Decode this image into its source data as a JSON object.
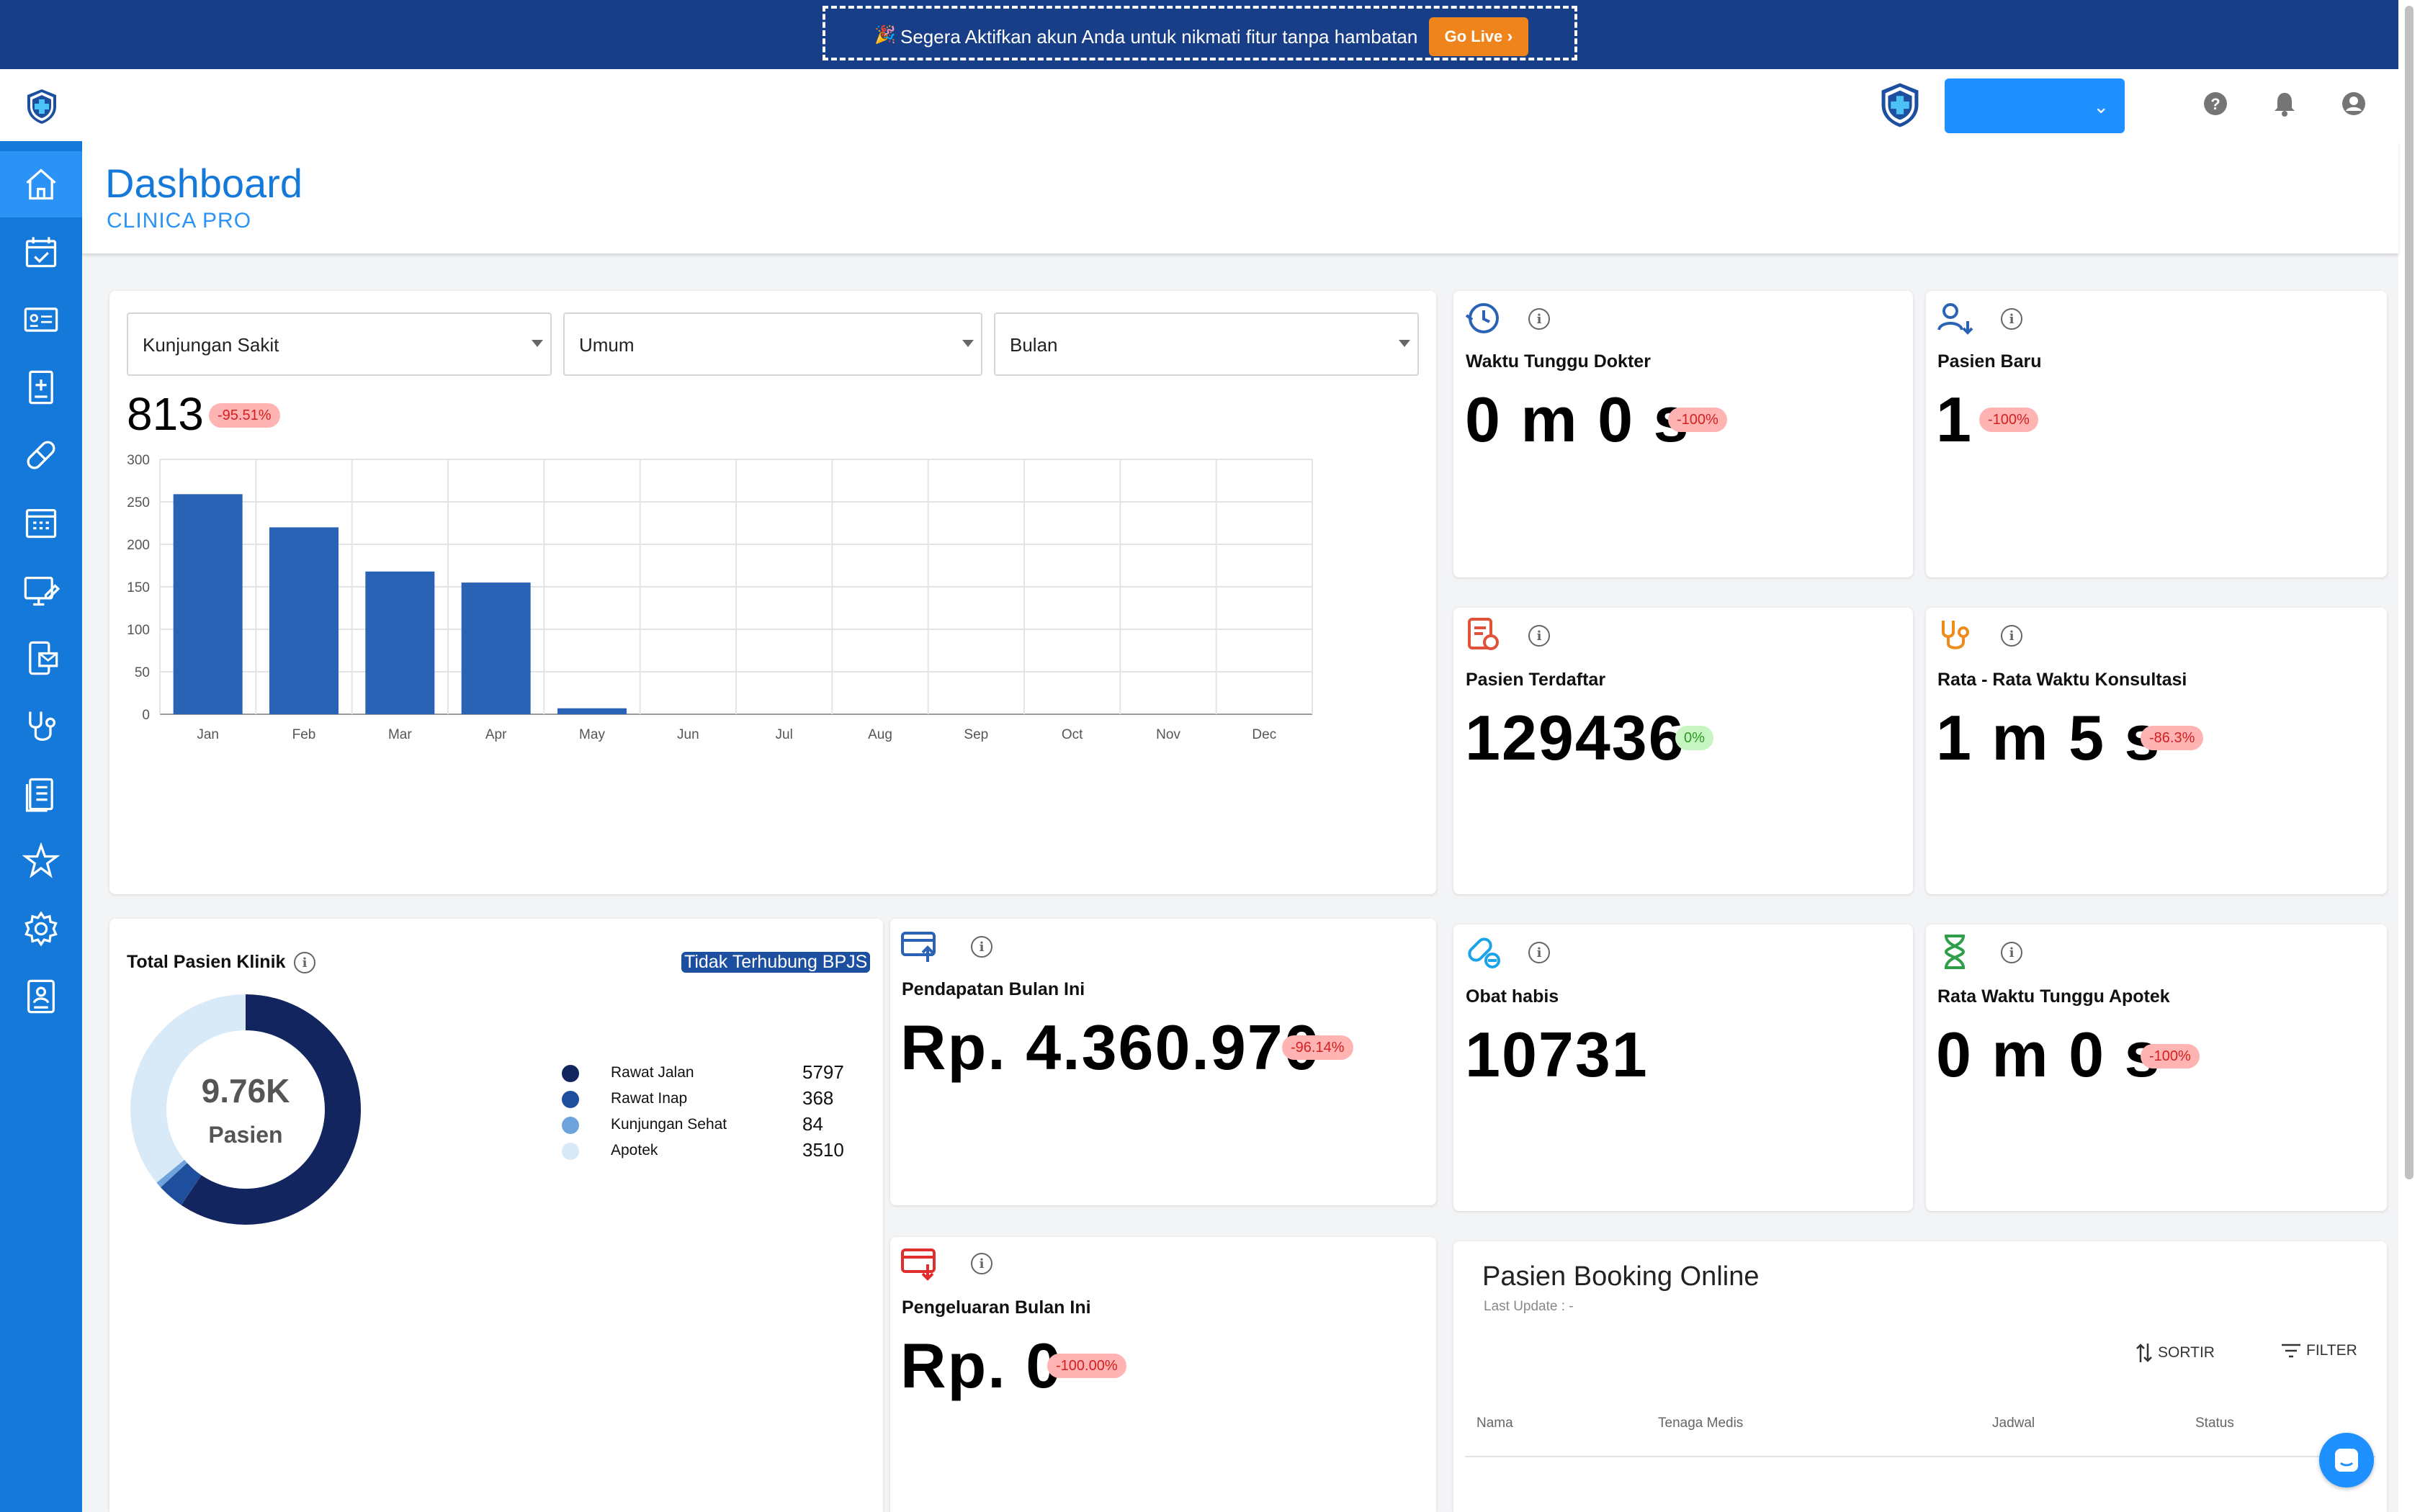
{
  "banner": {
    "text": "Segera Aktifkan akun Anda untuk nikmati fitur tanpa hambatan",
    "button": "Go Live"
  },
  "header": {
    "title": "Dashboard",
    "subtitle": "CLINICA PRO"
  },
  "topbar": {
    "icons": [
      "help-icon",
      "bell-icon",
      "account-icon"
    ]
  },
  "sidebar": {
    "items": [
      "home-icon",
      "calendar-check-icon",
      "id-card-icon",
      "medical-record-icon",
      "pill-icon",
      "calendar-grid-icon",
      "monitor-edit-icon",
      "phone-mail-icon",
      "stethoscope-icon",
      "clipboard-list-icon",
      "star-icon",
      "settings-icon",
      "patient-badge-icon"
    ]
  },
  "visits": {
    "filters": [
      "Kunjungan Sakit",
      "Umum",
      "Bulan"
    ],
    "total": "813",
    "total_change": "-95.51%"
  },
  "chart_data": {
    "type": "bar",
    "categories": [
      "Jan",
      "Feb",
      "Mar",
      "Apr",
      "May",
      "Jun",
      "Jul",
      "Aug",
      "Sep",
      "Oct",
      "Nov",
      "Dec"
    ],
    "values": [
      259,
      220,
      168,
      155,
      7,
      0,
      0,
      0,
      0,
      0,
      0,
      0
    ],
    "ylim": [
      0,
      300
    ],
    "yticks": [
      "300",
      "250",
      "200",
      "150",
      "100",
      "50",
      "0"
    ],
    "grid": true,
    "color": "#2a63b5"
  },
  "stats": {
    "waktu_tunggu": {
      "title": "Waktu Tunggu Dokter",
      "value": "0 m 0 s",
      "change": "-100%"
    },
    "pasien_baru": {
      "title": "Pasien Baru",
      "value": "1",
      "change": "-100%"
    },
    "pasien_terdaftar": {
      "title": "Pasien Terdaftar",
      "value": "129436",
      "change": "0%"
    },
    "rata_konsultasi": {
      "title": "Rata - Rata Waktu Konsultasi",
      "value": "1 m 5 s",
      "change": "-86.3%"
    },
    "pendapatan": {
      "title": "Pendapatan Bulan Ini",
      "value": "Rp. 4.360.970",
      "change": "-96.14%"
    },
    "obat_habis": {
      "title": "Obat habis",
      "value": "10731"
    },
    "tunggu_apotek": {
      "title": "Rata Waktu Tunggu Apotek",
      "value": "0 m 0 s",
      "change": "-100%"
    },
    "pengeluaran": {
      "title": "Pengeluaran Bulan Ini",
      "value": "Rp. 0",
      "change": "-100.00%"
    }
  },
  "patients": {
    "title": "Total Pasien Klinik",
    "bpjs": "Tidak Terhubung BPJS",
    "center_value": "9.76K",
    "center_label": "Pasien",
    "legend": [
      {
        "label": "Rawat Jalan",
        "value": "5797",
        "color": "#12255e"
      },
      {
        "label": "Rawat Inap",
        "value": "368",
        "color": "#1f4f9c"
      },
      {
        "label": "Kunjungan Sehat",
        "value": "84",
        "color": "#6fa3dc"
      },
      {
        "label": "Apotek",
        "value": "3510",
        "color": "#d8e9f8"
      }
    ]
  },
  "booking": {
    "title": "Pasien Booking Online",
    "last_update": "Last Update : -",
    "sort": "SORTIR",
    "filter": "FILTER",
    "columns": [
      "Nama",
      "Tenaga Medis",
      "Jadwal",
      "Status"
    ]
  }
}
